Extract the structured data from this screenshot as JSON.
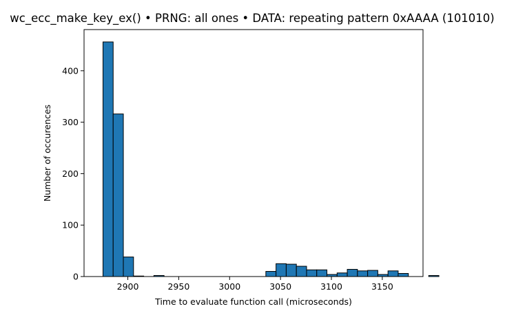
{
  "chart_data": {
    "type": "bar",
    "title": "wc_ecc_make_key_ex() • PRNG: all ones • DATA: repeating pattern 0xAAAA (101010)",
    "xlabel": "Time to evaluate function call (microseconds)",
    "ylabel": "Number of occurences",
    "xlim": [
      2857,
      3190
    ],
    "ylim": [
      0,
      480
    ],
    "xticks": [
      2900,
      2950,
      3000,
      3050,
      3100,
      3150
    ],
    "yticks": [
      0,
      100,
      200,
      300,
      400
    ],
    "bin_start": 2875.6,
    "bin_width": 10.0,
    "values": [
      456,
      316,
      38,
      1,
      0,
      2,
      0,
      0,
      0,
      0,
      0,
      0,
      0,
      0,
      0,
      0,
      10,
      25,
      24,
      20,
      13,
      13,
      4,
      7,
      14,
      11,
      12,
      4,
      11,
      6,
      0,
      0,
      2
    ],
    "bar_color": "#1f77b4",
    "edge_color": "#000000",
    "grid": false
  }
}
